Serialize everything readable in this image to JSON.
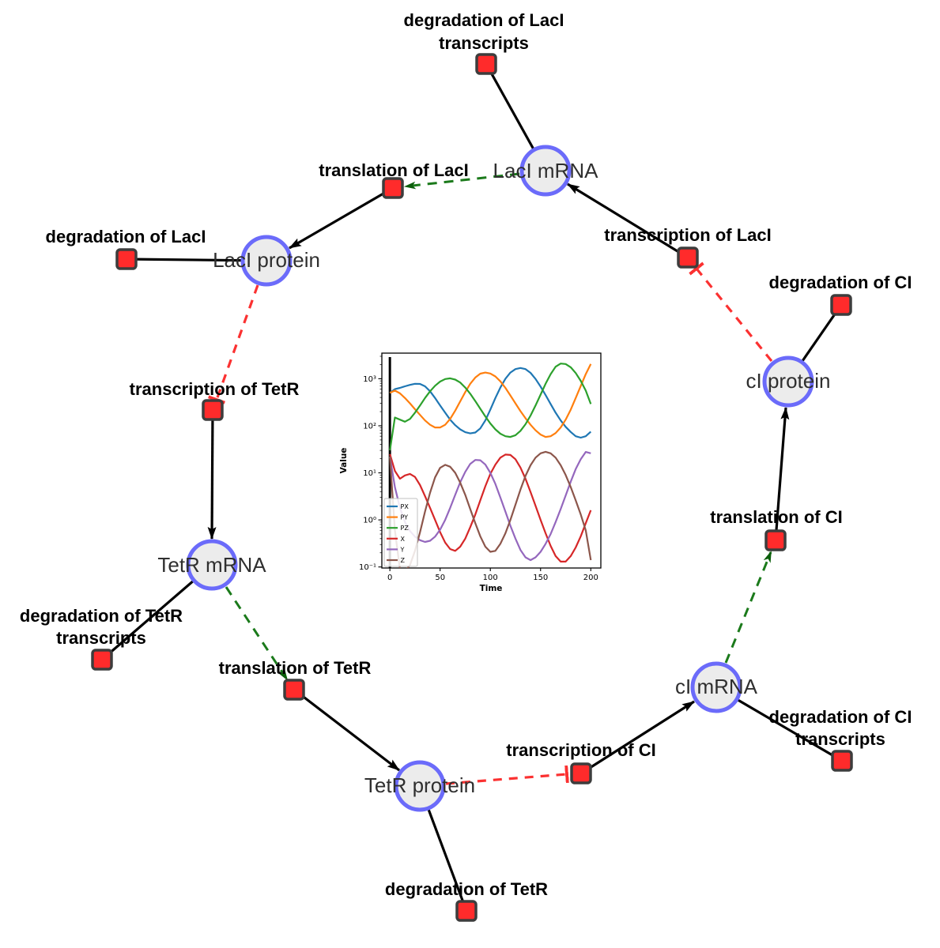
{
  "diagram": {
    "species": [
      {
        "id": "laci-mrna",
        "label": "LacI mRNA"
      },
      {
        "id": "laci-protein",
        "label": "LacI protein"
      },
      {
        "id": "tetr-mrna",
        "label": "TetR mRNA"
      },
      {
        "id": "tetr-protein",
        "label": "TetR protein"
      },
      {
        "id": "ci-mrna",
        "label": "cI mRNA"
      },
      {
        "id": "ci-protein",
        "label": "cI protein"
      }
    ],
    "reactions": [
      {
        "id": "degradation-laci-transcripts",
        "lines": [
          "degradation of LacI",
          "transcripts"
        ]
      },
      {
        "id": "translation-laci",
        "lines": [
          "translation of LacI"
        ]
      },
      {
        "id": "degradation-laci",
        "lines": [
          "degradation of LacI"
        ]
      },
      {
        "id": "transcription-laci",
        "lines": [
          "transcription of LacI"
        ]
      },
      {
        "id": "degradation-ci",
        "lines": [
          "degradation of CI"
        ]
      },
      {
        "id": "transcription-tetr",
        "lines": [
          "transcription of TetR"
        ]
      },
      {
        "id": "degradation-tetr-transcripts",
        "lines": [
          "degradation of TetR",
          "transcripts"
        ]
      },
      {
        "id": "translation-tetr",
        "lines": [
          "translation of TetR"
        ]
      },
      {
        "id": "degradation-tetr",
        "lines": [
          "degradation of TetR"
        ]
      },
      {
        "id": "transcription-ci",
        "lines": [
          "transcription of CI"
        ]
      },
      {
        "id": "degradation-ci-transcripts",
        "lines": [
          "degradation of CI",
          "transcripts"
        ]
      },
      {
        "id": "translation-ci",
        "lines": [
          "translation of CI"
        ]
      }
    ],
    "colors": {
      "species_fill": "#ececec",
      "species_stroke": "#6b6bfa",
      "reaction_fill": "#ff2b2b",
      "reaction_stroke": "#3d3d3d",
      "edge_black": "#000000",
      "activation_green": "#1b7a1b",
      "inhibition_red": "#fb3131"
    }
  },
  "chart_data": {
    "type": "line",
    "title": "",
    "xlabel": "Time",
    "ylabel": "Value",
    "y_scale": "log",
    "xlim": [
      -8,
      210
    ],
    "ylim": [
      0.095,
      3500
    ],
    "x_ticks": [
      0,
      50,
      100,
      150,
      200
    ],
    "y_ticks": [
      "10⁻¹",
      "10⁰",
      "10¹",
      "10²",
      "10³"
    ],
    "y_tick_values": [
      0.1,
      1,
      10,
      100,
      1000
    ],
    "grid": false,
    "legend_position": "lower left",
    "event_line_x": 0,
    "x": [
      0,
      5,
      10,
      15,
      20,
      25,
      30,
      35,
      40,
      45,
      50,
      55,
      60,
      65,
      70,
      75,
      80,
      85,
      90,
      95,
      100,
      105,
      110,
      115,
      120,
      125,
      130,
      135,
      140,
      145,
      150,
      155,
      160,
      165,
      170,
      175,
      180,
      185,
      190,
      195,
      200
    ],
    "series": [
      {
        "name": "PX",
        "color": "#1f77b4",
        "values": [
          500,
          600,
          640,
          690,
          740,
          780,
          775,
          690,
          540,
          390,
          270,
          190,
          135,
          103,
          84,
          73,
          69,
          72,
          88,
          130,
          220,
          390,
          650,
          1000,
          1350,
          1600,
          1690,
          1600,
          1330,
          990,
          680,
          450,
          290,
          190,
          130,
          95,
          74,
          60,
          56,
          60,
          75
        ]
      },
      {
        "name": "PY",
        "color": "#ff7f0e",
        "values": [
          500,
          560,
          490,
          390,
          300,
          225,
          170,
          130,
          105,
          92,
          92,
          105,
          140,
          210,
          330,
          520,
          780,
          1060,
          1280,
          1350,
          1290,
          1120,
          880,
          640,
          440,
          300,
          205,
          145,
          105,
          80,
          65,
          58,
          60,
          70,
          92,
          135,
          220,
          390,
          700,
          1250,
          2050
        ]
      },
      {
        "name": "PZ",
        "color": "#2ca02c",
        "values": [
          30,
          150,
          135,
          122,
          140,
          190,
          270,
          390,
          540,
          710,
          870,
          985,
          1020,
          960,
          830,
          650,
          480,
          335,
          230,
          158,
          112,
          84,
          68,
          60,
          58,
          63,
          78,
          108,
          165,
          270,
          460,
          780,
          1250,
          1800,
          2100,
          2050,
          1750,
          1320,
          900,
          560,
          290
        ]
      },
      {
        "name": "X",
        "color": "#d62728",
        "values": [
          25,
          11,
          7.5,
          8.8,
          9.5,
          8.2,
          5.5,
          3.2,
          1.8,
          1.0,
          0.55,
          0.33,
          0.24,
          0.22,
          0.27,
          0.4,
          0.7,
          1.3,
          2.6,
          5.2,
          9.5,
          15,
          21,
          24.5,
          24,
          19.5,
          13,
          7.5,
          3.9,
          2.0,
          1.0,
          0.52,
          0.28,
          0.17,
          0.13,
          0.13,
          0.17,
          0.26,
          0.45,
          0.85,
          1.6
        ]
      },
      {
        "name": "Y",
        "color": "#9467bd",
        "values": [
          22,
          5,
          1.8,
          0.9,
          0.58,
          0.44,
          0.37,
          0.34,
          0.36,
          0.44,
          0.62,
          1.0,
          1.8,
          3.4,
          6.3,
          10.5,
          15.5,
          18.8,
          18.5,
          15,
          10,
          5.8,
          3.0,
          1.5,
          0.75,
          0.4,
          0.23,
          0.16,
          0.14,
          0.16,
          0.21,
          0.31,
          0.5,
          0.9,
          1.7,
          3.3,
          6.5,
          12,
          19.5,
          27.8,
          26
        ]
      },
      {
        "name": "Z",
        "color": "#8c564b",
        "values": [
          22,
          0.6,
          0.09,
          0.08,
          0.11,
          0.22,
          0.55,
          1.5,
          3.8,
          8,
          12.8,
          14.8,
          13.5,
          10,
          6.2,
          3.4,
          1.7,
          0.85,
          0.45,
          0.27,
          0.21,
          0.22,
          0.31,
          0.52,
          1.0,
          2.1,
          4.4,
          8.6,
          14.5,
          21,
          26,
          28,
          26,
          21,
          14.5,
          9,
          5,
          2.6,
          1.3,
          0.6,
          0.14
        ]
      }
    ]
  }
}
